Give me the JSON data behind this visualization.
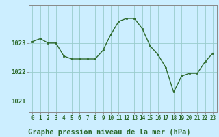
{
  "x": [
    0,
    1,
    2,
    3,
    4,
    5,
    6,
    7,
    8,
    9,
    10,
    11,
    12,
    13,
    14,
    15,
    16,
    17,
    18,
    19,
    20,
    21,
    22,
    23
  ],
  "y": [
    1023.05,
    1023.15,
    1023.0,
    1023.0,
    1022.55,
    1022.45,
    1022.45,
    1022.45,
    1022.45,
    1022.75,
    1023.3,
    1023.75,
    1023.85,
    1023.85,
    1023.5,
    1022.9,
    1022.6,
    1022.15,
    1021.3,
    1021.85,
    1021.95,
    1021.95,
    1022.35,
    1022.65
  ],
  "line_color": "#2d6a2d",
  "marker": "s",
  "marker_size": 2.0,
  "linewidth": 1.0,
  "background_color": "#cceeff",
  "label_bg_color": "#aaddcc",
  "grid_color": "#99cccc",
  "xlabel": "Graphe pression niveau de la mer (hPa)",
  "xlabel_fontsize": 7.5,
  "ylabel_ticks": [
    1021,
    1022,
    1023
  ],
  "xlim": [
    -0.5,
    23.5
  ],
  "ylim": [
    1020.6,
    1024.3
  ],
  "xtick_fontsize": 5.5,
  "ytick_fontsize": 6.5,
  "spine_color": "#888888"
}
